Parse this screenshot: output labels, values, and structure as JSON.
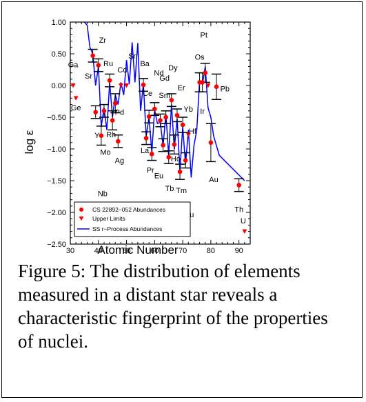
{
  "caption": "Figure 5: The distribution of elements measured in a distant star reveals a characteristic fingerprint of the properties of nuclei.",
  "chart_data": {
    "type": "scatter",
    "xlabel": "Atomic Number",
    "ylabel": "log ε",
    "xlim": [
      30,
      94
    ],
    "ylim": [
      -2.5,
      1.0
    ],
    "xticks": [
      30,
      40,
      50,
      60,
      70,
      80,
      90
    ],
    "yticks": [
      1.0,
      0.5,
      0.0,
      -0.5,
      -1.0,
      -1.5,
      -2.0,
      -2.5
    ],
    "ytick_labels": [
      "1.00",
      "0.50",
      "0.00",
      "−0.50",
      "−1.00",
      "−1.50",
      "−2.00",
      "−2.50"
    ],
    "colors": {
      "measured": "#ff0000",
      "limit": "#ff0000",
      "solar": "#0000ff"
    },
    "legend": {
      "placement": "bottom-left",
      "entries": [
        "CS 22892−052 Abundances",
        "Upper Limits",
        "SS r−Process Abundances"
      ]
    },
    "series": [
      {
        "name": "CS 22892−052 Abundances",
        "marker": "circle",
        "points": [
          {
            "x": 38,
            "y": 0.47,
            "err": 0.1
          },
          {
            "x": 39,
            "y": -0.42,
            "err": 0.1
          },
          {
            "x": 40,
            "y": 0.32,
            "err": 0.1
          },
          {
            "x": 41,
            "y": -0.79,
            "err": 0.15
          },
          {
            "x": 42,
            "y": -0.4,
            "err": 0.1
          },
          {
            "x": 44,
            "y": 0.08,
            "err": 0.1
          },
          {
            "x": 45,
            "y": -0.55,
            "err": 0.15
          },
          {
            "x": 46,
            "y": -0.28,
            "err": 0.15
          },
          {
            "x": 47,
            "y": -0.88,
            "err": 0.1
          },
          {
            "x": 56,
            "y": 0.01,
            "err": 0.1
          },
          {
            "x": 57,
            "y": -0.83,
            "err": 0.1
          },
          {
            "x": 58,
            "y": -0.49,
            "err": 0.1
          },
          {
            "x": 59,
            "y": -1.08,
            "err": 0.1
          },
          {
            "x": 60,
            "y": -0.37,
            "err": 0.1
          },
          {
            "x": 62,
            "y": -0.55,
            "err": 0.1
          },
          {
            "x": 63,
            "y": -0.94,
            "err": 0.1
          },
          {
            "x": 64,
            "y": -0.5,
            "err": 0.1
          },
          {
            "x": 65,
            "y": -1.13,
            "err": 0.1
          },
          {
            "x": 66,
            "y": -0.23,
            "err": 0.1
          },
          {
            "x": 67,
            "y": -0.93,
            "err": 0.15
          },
          {
            "x": 68,
            "y": -0.47,
            "err": 0.1
          },
          {
            "x": 69,
            "y": -1.36,
            "err": 0.12
          },
          {
            "x": 70,
            "y": -0.62,
            "err": 0.12
          },
          {
            "x": 71,
            "y": -1.18,
            "err": 0.12
          },
          {
            "x": 76,
            "y": 0.05,
            "err": 0.15
          },
          {
            "x": 77,
            "y": 0.05,
            "err": 0.15
          },
          {
            "x": 78,
            "y": 0.2,
            "err": 0.15
          },
          {
            "x": 80,
            "y": -0.9,
            "err": 0.3
          },
          {
            "x": 82,
            "y": -0.02,
            "err": 0.2
          },
          {
            "x": 90,
            "y": -1.57,
            "err": 0.1
          }
        ]
      },
      {
        "name": "Upper Limits",
        "marker": "triangle-down",
        "points": [
          {
            "x": 31,
            "y": 0.0
          },
          {
            "x": 32,
            "y": -0.2
          },
          {
            "x": 48,
            "y": 0.0
          },
          {
            "x": 50,
            "y": 0.0
          },
          {
            "x": 72,
            "y": -0.78
          },
          {
            "x": 79,
            "y": 0.0
          },
          {
            "x": 92,
            "y": -2.3
          }
        ]
      },
      {
        "name": "SS r−Process Abundances",
        "type": "line",
        "points": [
          {
            "x": 34,
            "y": 1.05
          },
          {
            "x": 35,
            "y": 1.0
          },
          {
            "x": 36,
            "y": 0.95
          },
          {
            "x": 37,
            "y": 0.6
          },
          {
            "x": 38,
            "y": 0.5
          },
          {
            "x": 39,
            "y": 0.0
          },
          {
            "x": 40,
            "y": 0.3
          },
          {
            "x": 41,
            "y": -0.65
          },
          {
            "x": 42,
            "y": -0.35
          },
          {
            "x": 43,
            "y": -0.7
          },
          {
            "x": 44,
            "y": 0.05
          },
          {
            "x": 45,
            "y": -0.5
          },
          {
            "x": 46,
            "y": -0.15
          },
          {
            "x": 47,
            "y": -0.3
          },
          {
            "x": 48,
            "y": 0.05
          },
          {
            "x": 49,
            "y": -0.15
          },
          {
            "x": 50,
            "y": 0.4
          },
          {
            "x": 51,
            "y": 0.02
          },
          {
            "x": 52,
            "y": 0.68
          },
          {
            "x": 53,
            "y": 0.05
          },
          {
            "x": 54,
            "y": 0.67
          },
          {
            "x": 55,
            "y": -0.4
          },
          {
            "x": 56,
            "y": 0.03
          },
          {
            "x": 57,
            "y": -0.8
          },
          {
            "x": 58,
            "y": -0.5
          },
          {
            "x": 59,
            "y": -1.05
          },
          {
            "x": 60,
            "y": -0.38
          },
          {
            "x": 61,
            "y": -0.6
          },
          {
            "x": 62,
            "y": -0.58
          },
          {
            "x": 63,
            "y": -0.95
          },
          {
            "x": 64,
            "y": -0.45
          },
          {
            "x": 65,
            "y": -1.1
          },
          {
            "x": 66,
            "y": -0.3
          },
          {
            "x": 67,
            "y": -1.0
          },
          {
            "x": 68,
            "y": -0.52
          },
          {
            "x": 69,
            "y": -1.35
          },
          {
            "x": 70,
            "y": -0.65
          },
          {
            "x": 71,
            "y": -1.25
          },
          {
            "x": 72,
            "y": -0.7
          },
          {
            "x": 73,
            "y": -1.45
          },
          {
            "x": 74,
            "y": -0.95
          },
          {
            "x": 75,
            "y": -0.7
          },
          {
            "x": 76,
            "y": 0.08
          },
          {
            "x": 77,
            "y": 0.02
          },
          {
            "x": 78,
            "y": 0.3
          },
          {
            "x": 79,
            "y": -0.35
          },
          {
            "x": 80,
            "y": -0.5
          },
          {
            "x": 81,
            "y": -0.8
          },
          {
            "x": 82,
            "y": -0.95
          },
          {
            "x": 83,
            "y": -1.1
          },
          {
            "x": 92,
            "y": -1.5
          }
        ]
      }
    ],
    "element_labels": [
      {
        "x": 31,
        "y": 0.33,
        "text": "Ga"
      },
      {
        "x": 32,
        "y": -0.35,
        "text": "Ge"
      },
      {
        "x": 36.5,
        "y": 0.15,
        "text": "Sr"
      },
      {
        "x": 39.5,
        "y": -0.78,
        "text": "Y"
      },
      {
        "x": 41.5,
        "y": 0.72,
        "text": "Zr"
      },
      {
        "x": 41.5,
        "y": -1.7,
        "text": "Nb"
      },
      {
        "x": 42.5,
        "y": -1.05,
        "text": "Mo"
      },
      {
        "x": 43.5,
        "y": 0.35,
        "text": "Ru"
      },
      {
        "x": 44.5,
        "y": -0.77,
        "text": "Rh"
      },
      {
        "x": 47.5,
        "y": -0.42,
        "text": "Pd"
      },
      {
        "x": 47.5,
        "y": -1.18,
        "text": "Ag"
      },
      {
        "x": 48.5,
        "y": 0.25,
        "text": "Cd"
      },
      {
        "x": 52.3,
        "y": 0.47,
        "text": "Sn"
      },
      {
        "x": 56.5,
        "y": 0.35,
        "text": "Ba"
      },
      {
        "x": 57.5,
        "y": -0.12,
        "text": "Ce"
      },
      {
        "x": 56.5,
        "y": -1.02,
        "text": "La"
      },
      {
        "x": 58.5,
        "y": -1.33,
        "text": "Pr"
      },
      {
        "x": 61.5,
        "y": 0.2,
        "text": "Nd"
      },
      {
        "x": 61.5,
        "y": -1.42,
        "text": "Eu"
      },
      {
        "x": 63.5,
        "y": 0.12,
        "text": "Gd"
      },
      {
        "x": 63.5,
        "y": -0.15,
        "text": "Sm"
      },
      {
        "x": 65.3,
        "y": -1.62,
        "text": "Tb"
      },
      {
        "x": 66.5,
        "y": 0.28,
        "text": "Dy"
      },
      {
        "x": 67.5,
        "y": -1.15,
        "text": "Ho"
      },
      {
        "x": 69.5,
        "y": -0.03,
        "text": "Er"
      },
      {
        "x": 69.5,
        "y": -1.65,
        "text": "Tm"
      },
      {
        "x": 72,
        "y": -0.37,
        "text": "Yb"
      },
      {
        "x": 73.5,
        "y": -0.72,
        "text": "Hf"
      },
      {
        "x": 72.5,
        "y": -2.03,
        "text": "Lu"
      },
      {
        "x": 77.5,
        "y": 0.8,
        "text": "Pt"
      },
      {
        "x": 76,
        "y": 0.45,
        "text": "Os"
      },
      {
        "x": 77,
        "y": -0.4,
        "text": "Ir"
      },
      {
        "x": 81,
        "y": -1.48,
        "text": "Au"
      },
      {
        "x": 85,
        "y": -0.05,
        "text": "Pb"
      },
      {
        "x": 90,
        "y": -1.95,
        "text": "Th"
      },
      {
        "x": 91.5,
        "y": -2.13,
        "text": "U"
      }
    ]
  }
}
